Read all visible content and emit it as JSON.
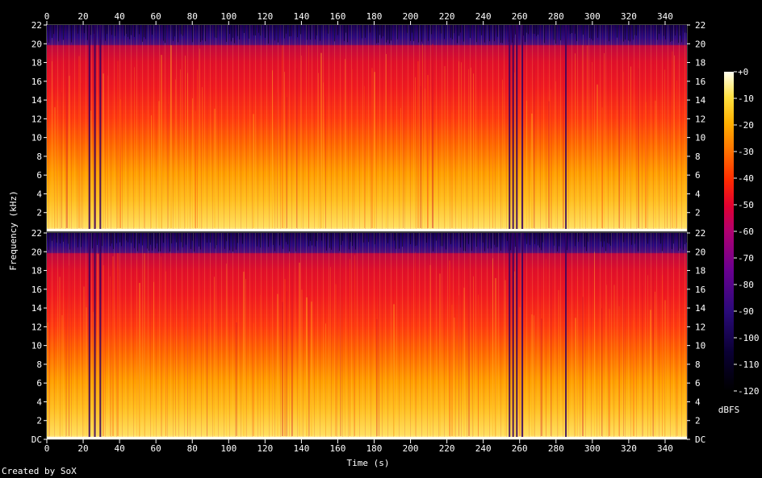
{
  "credit": "Created by SoX",
  "chart_data": {
    "type": "heatmap",
    "title": "",
    "xlabel": "Time (s)",
    "ylabel": "Frequency (kHz)",
    "colorbar_label": "dBFS",
    "xlim": [
      0,
      352
    ],
    "ylim_khz": [
      0,
      22
    ],
    "x_ticks": [
      "0",
      "20",
      "40",
      "60",
      "80",
      "100",
      "120",
      "140",
      "160",
      "180",
      "200",
      "220",
      "240",
      "260",
      "280",
      "300",
      "320",
      "340"
    ],
    "y_ticks_top": [
      "2",
      "4",
      "6",
      "8",
      "10",
      "12",
      "14",
      "16",
      "18",
      "20",
      "22"
    ],
    "y_ticks_bottom": [
      "DC",
      "2",
      "4",
      "6",
      "8",
      "10",
      "12",
      "14",
      "16",
      "18",
      "20",
      "22"
    ],
    "colorbar_ticks": [
      "+0",
      "-10",
      "-20",
      "-30",
      "-40",
      "-50",
      "-60",
      "-70",
      "-80",
      "-90",
      "-100",
      "-110",
      "-120"
    ],
    "colorbar_range_dbfs": [
      -120,
      0
    ],
    "channels": 2,
    "cutoff_khz": 20,
    "dropouts_s": [
      23,
      26,
      29,
      254,
      256,
      258,
      261,
      285
    ]
  }
}
